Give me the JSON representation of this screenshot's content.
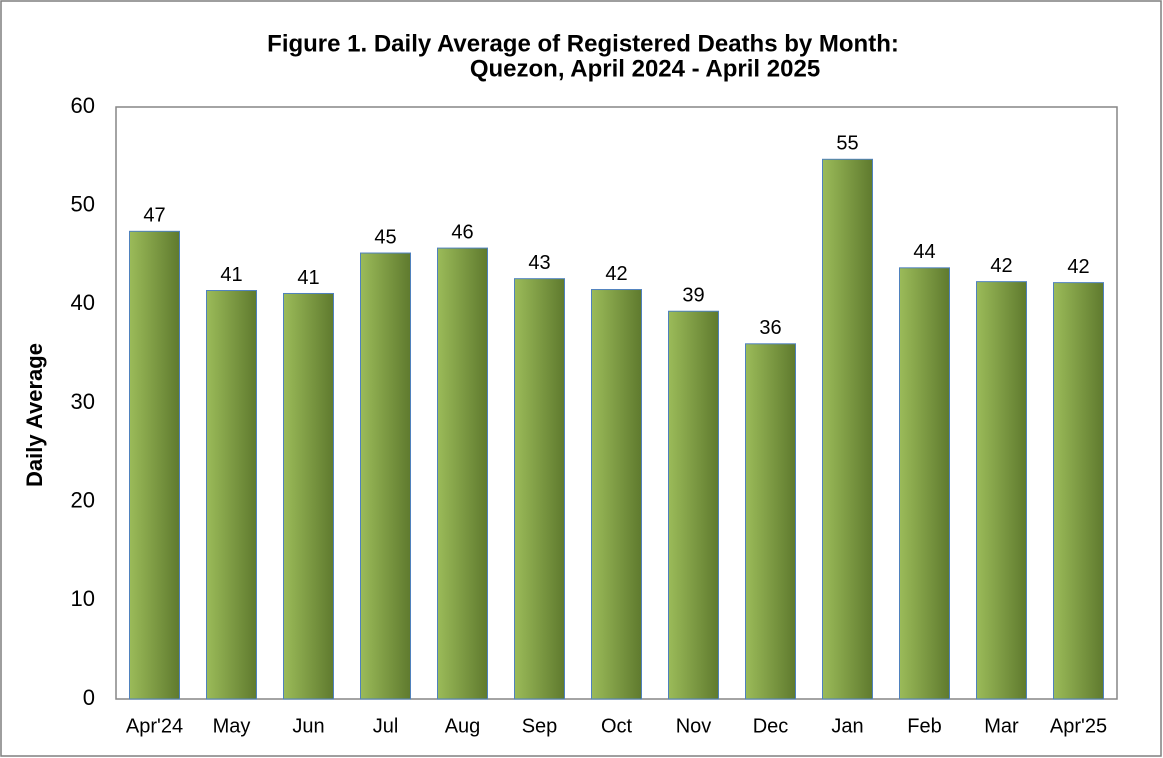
{
  "chart_data": {
    "type": "bar",
    "title": [
      "Figure 1. Daily Average of Registered Deaths by Month:",
      "Quezon, April 2024 - April 2025"
    ],
    "y_label": "Daily Average",
    "categories": [
      "Apr'24",
      "May",
      "Jun",
      "Jul",
      "Aug",
      "Sep",
      "Oct",
      "Nov",
      "Dec",
      "Jan",
      "Feb",
      "Mar",
      "Apr'25"
    ],
    "values": [
      47.4,
      41.4,
      41.1,
      45.2,
      45.7,
      42.6,
      41.5,
      39.3,
      36.0,
      54.7,
      43.7,
      42.3,
      42.2
    ],
    "value_labels": [
      "47",
      "41",
      "41",
      "45",
      "46",
      "43",
      "42",
      "39",
      "36",
      "55",
      "44",
      "42",
      "42"
    ],
    "color": [
      "#9bbb59",
      "#5f7a2e"
    ],
    "ylim": [
      0,
      60
    ],
    "yticks": [
      0,
      10,
      20,
      30,
      40,
      50,
      60
    ],
    "grid": false
  }
}
